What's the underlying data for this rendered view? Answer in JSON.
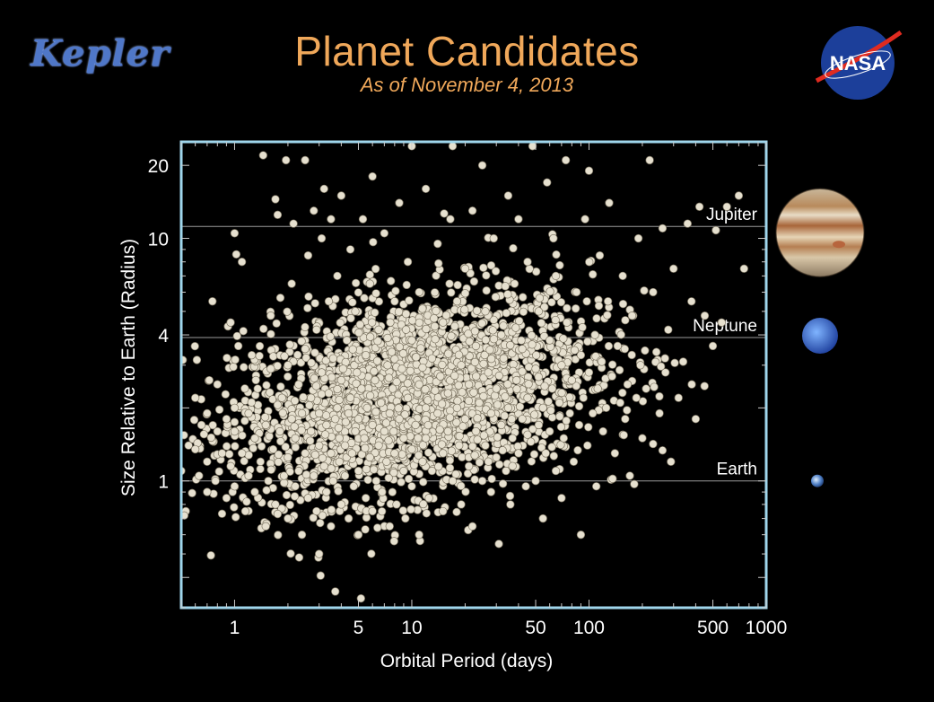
{
  "header": {
    "title": "Planet Candidates",
    "subtitle": "As of November 4, 2013",
    "kepler_logo_text": "Kepler",
    "nasa_logo_text": "NASA"
  },
  "colors": {
    "background": "#000000",
    "title": "#f0a85a",
    "frame": "#9fd6ec",
    "point_fill": "#e6e0cf",
    "point_stroke": "#7a7260",
    "reference_line": "#9a9a9a",
    "text": "#ffffff"
  },
  "chart_data": {
    "type": "scatter",
    "title": "Planet Candidates",
    "subtitle": "As of November 4, 2013",
    "xlabel": "Orbital Period (days)",
    "ylabel": "Size Relative to Earth (Radius)",
    "x_scale": "log",
    "y_scale": "log",
    "xlim": [
      0.5,
      1000
    ],
    "ylim": [
      0.3,
      25
    ],
    "x_ticks": [
      1,
      5,
      10,
      50,
      100,
      500,
      1000
    ],
    "y_ticks": [
      1,
      4,
      10,
      20
    ],
    "grid": false,
    "reference_lines": [
      {
        "label": "Jupiter",
        "y": 11.2,
        "icon": "jupiter-icon"
      },
      {
        "label": "Neptune",
        "y": 3.9,
        "icon": "neptune-icon"
      },
      {
        "label": "Earth",
        "y": 1,
        "icon": "earth-icon"
      }
    ],
    "series": [
      {
        "points": [
          [
            0.5,
            1.1
          ],
          [
            0.52,
            0.72
          ],
          [
            0.55,
            1.4
          ],
          [
            0.6,
            1.35
          ],
          [
            0.6,
            2.2
          ],
          [
            0.63,
            1.05
          ],
          [
            0.65,
            1.7
          ],
          [
            0.7,
            1.9
          ],
          [
            0.7,
            0.9
          ],
          [
            0.7,
            1.2
          ],
          [
            0.72,
            2.6
          ],
          [
            0.75,
            5.5
          ],
          [
            0.78,
            1.0
          ],
          [
            0.8,
            1.6
          ],
          [
            0.8,
            2.5
          ],
          [
            0.85,
            1.3
          ],
          [
            0.9,
            0.85
          ],
          [
            0.9,
            1.8
          ],
          [
            0.95,
            1.15
          ],
          [
            0.95,
            4.5
          ],
          [
            1.0,
            1.6
          ],
          [
            1.0,
            0.95
          ],
          [
            1.0,
            2.0
          ],
          [
            1.0,
            10.5
          ],
          [
            1.05,
            3.6
          ],
          [
            1.1,
            1.3
          ],
          [
            1.1,
            8.0
          ],
          [
            1.15,
            0.75
          ],
          [
            1.2,
            1.9
          ],
          [
            1.2,
            1.05
          ],
          [
            1.25,
            3.3
          ],
          [
            1.3,
            1.5
          ],
          [
            1.3,
            0.9
          ],
          [
            1.35,
            2.4
          ],
          [
            1.4,
            1.2
          ],
          [
            1.45,
            22
          ],
          [
            1.5,
            1.7
          ],
          [
            1.5,
            0.65
          ],
          [
            1.55,
            1.0
          ],
          [
            1.6,
            2.9
          ],
          [
            1.6,
            4.8
          ],
          [
            1.65,
            1.35
          ],
          [
            1.7,
            0.8
          ],
          [
            1.7,
            14.5
          ],
          [
            1.75,
            12.5
          ],
          [
            1.8,
            1.6
          ],
          [
            1.85,
            2.2
          ],
          [
            1.9,
            1.05
          ],
          [
            1.95,
            21
          ],
          [
            2.0,
            1.25
          ],
          [
            2.0,
            0.7
          ],
          [
            2.0,
            3.0
          ],
          [
            2.1,
            1.8
          ],
          [
            2.1,
            6.5
          ],
          [
            2.15,
            11.5
          ],
          [
            2.2,
            0.95
          ],
          [
            2.2,
            1.5
          ],
          [
            2.3,
            2.5
          ],
          [
            2.3,
            1.1
          ],
          [
            2.4,
            0.6
          ],
          [
            2.4,
            1.9
          ],
          [
            2.5,
            21
          ],
          [
            2.5,
            1.3
          ],
          [
            2.5,
            3.5
          ],
          [
            2.6,
            8.5
          ],
          [
            2.6,
            0.85
          ],
          [
            2.7,
            1.6
          ],
          [
            2.7,
            2.2
          ],
          [
            2.8,
            13
          ],
          [
            2.8,
            1.05
          ],
          [
            2.9,
            0.75
          ],
          [
            2.9,
            4.2
          ],
          [
            3.0,
            1.4
          ],
          [
            3.0,
            1.9
          ],
          [
            3.0,
            0.5
          ],
          [
            3.1,
            2.8
          ],
          [
            3.1,
            10
          ],
          [
            3.2,
            1.15
          ],
          [
            3.2,
            16
          ],
          [
            3.3,
            0.9
          ],
          [
            3.3,
            1.7
          ],
          [
            3.4,
            2.3
          ],
          [
            3.4,
            5.5
          ],
          [
            3.5,
            1.3
          ],
          [
            3.5,
            0.65
          ],
          [
            3.5,
            12
          ],
          [
            3.6,
            1.0
          ],
          [
            3.6,
            3.2
          ],
          [
            3.7,
            1.8
          ],
          [
            3.7,
            0.35
          ],
          [
            3.8,
            2.0
          ],
          [
            3.8,
            7
          ],
          [
            3.9,
            1.2
          ],
          [
            3.9,
            1.5
          ],
          [
            4.0,
            0.8
          ],
          [
            4.0,
            2.6
          ],
          [
            4.0,
            15
          ],
          [
            4.2,
            1.4
          ],
          [
            4.2,
            1.05
          ],
          [
            4.3,
            3.8
          ],
          [
            4.4,
            1.9
          ],
          [
            4.4,
            0.7
          ],
          [
            4.5,
            9
          ],
          [
            4.5,
            2.2
          ],
          [
            4.6,
            1.3
          ],
          [
            4.7,
            0.95
          ],
          [
            4.8,
            1.6
          ],
          [
            4.8,
            5
          ],
          [
            4.9,
            2.8
          ],
          [
            5.0,
            1.1
          ],
          [
            5.0,
            1.8
          ],
          [
            5.0,
            0.6
          ],
          [
            5.2,
            2.4
          ],
          [
            5.3,
            12
          ],
          [
            5.4,
            1.5
          ],
          [
            5.5,
            0.85
          ],
          [
            5.5,
            3.3
          ],
          [
            5.6,
            2.0
          ],
          [
            5.8,
            1.25
          ],
          [
            5.8,
            6.5
          ],
          [
            6.0,
            1.7
          ],
          [
            6.0,
            0.75
          ],
          [
            6.0,
            18
          ],
          [
            6.2,
            2.6
          ],
          [
            6.3,
            1.0
          ],
          [
            6.5,
            1.4
          ],
          [
            6.5,
            4.2
          ],
          [
            6.7,
            2.1
          ],
          [
            6.8,
            0.9
          ],
          [
            7.0,
            1.6
          ],
          [
            7.0,
            10.5
          ],
          [
            7.2,
            1.2
          ],
          [
            7.3,
            3.0
          ],
          [
            7.5,
            1.9
          ],
          [
            7.5,
            0.65
          ],
          [
            7.8,
            2.4
          ],
          [
            8.0,
            1.3
          ],
          [
            8.0,
            5.5
          ],
          [
            8.2,
            0.8
          ],
          [
            8.5,
            1.8
          ],
          [
            8.5,
            14
          ],
          [
            8.8,
            2.9
          ],
          [
            9.0,
            1.1
          ],
          [
            9.0,
            1.5
          ],
          [
            9.2,
            0.7
          ],
          [
            9.5,
            2.2
          ],
          [
            9.5,
            8
          ],
          [
            10,
            1.35
          ],
          [
            10,
            0.95
          ],
          [
            10,
            3.8
          ],
          [
            10,
            24
          ],
          [
            10.5,
            1.7
          ],
          [
            11,
            2.5
          ],
          [
            11,
            0.6
          ],
          [
            11,
            6
          ],
          [
            11.5,
            1.2
          ],
          [
            12,
            2.0
          ],
          [
            12,
            1.5
          ],
          [
            12,
            16
          ],
          [
            12.5,
            0.85
          ],
          [
            13,
            3.2
          ],
          [
            13,
            1.1
          ],
          [
            13.5,
            0.28
          ],
          [
            14,
            1.9
          ],
          [
            14,
            9.5
          ],
          [
            14.5,
            2.7
          ],
          [
            15,
            1.3
          ],
          [
            15,
            0.75
          ],
          [
            15,
            4.5
          ],
          [
            16,
            1.6
          ],
          [
            16,
            2.3
          ],
          [
            16.5,
            12
          ],
          [
            17,
            1.0
          ],
          [
            17,
            24
          ],
          [
            18,
            2.0
          ],
          [
            18,
            5.5
          ],
          [
            18.5,
            1.4
          ],
          [
            19,
            0.8
          ],
          [
            19,
            3.0
          ],
          [
            20,
            1.8
          ],
          [
            20,
            7.5
          ],
          [
            21,
            1.15
          ],
          [
            21,
            2.5
          ],
          [
            22,
            0.65
          ],
          [
            22,
            13
          ],
          [
            23,
            1.6
          ],
          [
            23,
            3.6
          ],
          [
            24,
            2.1
          ],
          [
            25,
            1.0
          ],
          [
            25,
            20
          ],
          [
            26,
            1.4
          ],
          [
            26,
            5
          ],
          [
            27,
            2.8
          ],
          [
            28,
            0.9
          ],
          [
            28,
            1.9
          ],
          [
            29,
            10
          ],
          [
            30,
            1.25
          ],
          [
            30,
            2.4
          ],
          [
            31,
            0.55
          ],
          [
            32,
            1.7
          ],
          [
            32,
            4
          ],
          [
            33,
            3.2
          ],
          [
            34,
            1.1
          ],
          [
            35,
            2.0
          ],
          [
            35,
            15
          ],
          [
            36,
            0.8
          ],
          [
            37,
            1.5
          ],
          [
            38,
            6.5
          ],
          [
            39,
            2.6
          ],
          [
            40,
            1.3
          ],
          [
            40,
            12
          ],
          [
            42,
            1.8
          ],
          [
            42,
            3.5
          ],
          [
            44,
            0.95
          ],
          [
            45,
            2.2
          ],
          [
            45,
            8
          ],
          [
            47,
            1.45
          ],
          [
            48,
            24
          ],
          [
            50,
            1.0
          ],
          [
            50,
            2.9
          ],
          [
            52,
            1.7
          ],
          [
            52,
            5
          ],
          [
            55,
            0.7
          ],
          [
            55,
            2.0
          ],
          [
            57,
            1.3
          ],
          [
            58,
            17
          ],
          [
            60,
            3.8
          ],
          [
            60,
            1.6
          ],
          [
            62,
            2.4
          ],
          [
            63,
            10
          ],
          [
            65,
            1.1
          ],
          [
            65,
            7
          ],
          [
            68,
            2.1
          ],
          [
            70,
            0.85
          ],
          [
            70,
            3.0
          ],
          [
            72,
            1.5
          ],
          [
            74,
            21
          ],
          [
            75,
            4.5
          ],
          [
            78,
            1.9
          ],
          [
            80,
            2.6
          ],
          [
            82,
            1.2
          ],
          [
            85,
            6
          ],
          [
            88,
            1.7
          ],
          [
            90,
            0.6
          ],
          [
            90,
            3.3
          ],
          [
            93,
            2.2
          ],
          [
            95,
            12
          ],
          [
            98,
            1.4
          ],
          [
            100,
            2.8
          ],
          [
            100,
            19
          ],
          [
            105,
            1.9
          ],
          [
            108,
            4
          ],
          [
            110,
            0.95
          ],
          [
            112,
            2.4
          ],
          [
            115,
            8.5
          ],
          [
            118,
            3.1
          ],
          [
            120,
            1.6
          ],
          [
            125,
            2.0
          ],
          [
            128,
            5.5
          ],
          [
            130,
            14
          ],
          [
            135,
            2.7
          ],
          [
            140,
            1.3
          ],
          [
            145,
            3.6
          ],
          [
            150,
            2.1
          ],
          [
            155,
            7
          ],
          [
            160,
            1.8
          ],
          [
            165,
            2.5
          ],
          [
            170,
            1.05
          ],
          [
            175,
            4.8
          ],
          [
            180,
            0.97
          ],
          [
            185,
            2.2
          ],
          [
            190,
            10
          ],
          [
            195,
            3.0
          ],
          [
            200,
            1.5
          ],
          [
            210,
            2.4
          ],
          [
            220,
            21
          ],
          [
            230,
            6
          ],
          [
            240,
            3.4
          ],
          [
            250,
            1.9
          ],
          [
            260,
            11
          ],
          [
            270,
            2.8
          ],
          [
            280,
            4.2
          ],
          [
            290,
            1.2
          ],
          [
            300,
            7.5
          ],
          [
            320,
            2.2
          ],
          [
            340,
            3.1
          ],
          [
            360,
            11.5
          ],
          [
            380,
            2.5
          ],
          [
            400,
            1.8
          ],
          [
            420,
            13.5
          ],
          [
            450,
            4.8
          ],
          [
            500,
            3.6
          ],
          [
            520,
            10.8
          ],
          [
            560,
            4.5
          ],
          [
            600,
            13.5
          ],
          [
            700,
            15
          ],
          [
            750,
            7.5
          ]
        ]
      }
    ]
  },
  "cloud": {
    "count": 2600,
    "logp_mean": 1.0,
    "logp_sd": 0.5,
    "logr_base": 0.22,
    "logr_slope": 0.14,
    "logr_sd": 0.2
  }
}
